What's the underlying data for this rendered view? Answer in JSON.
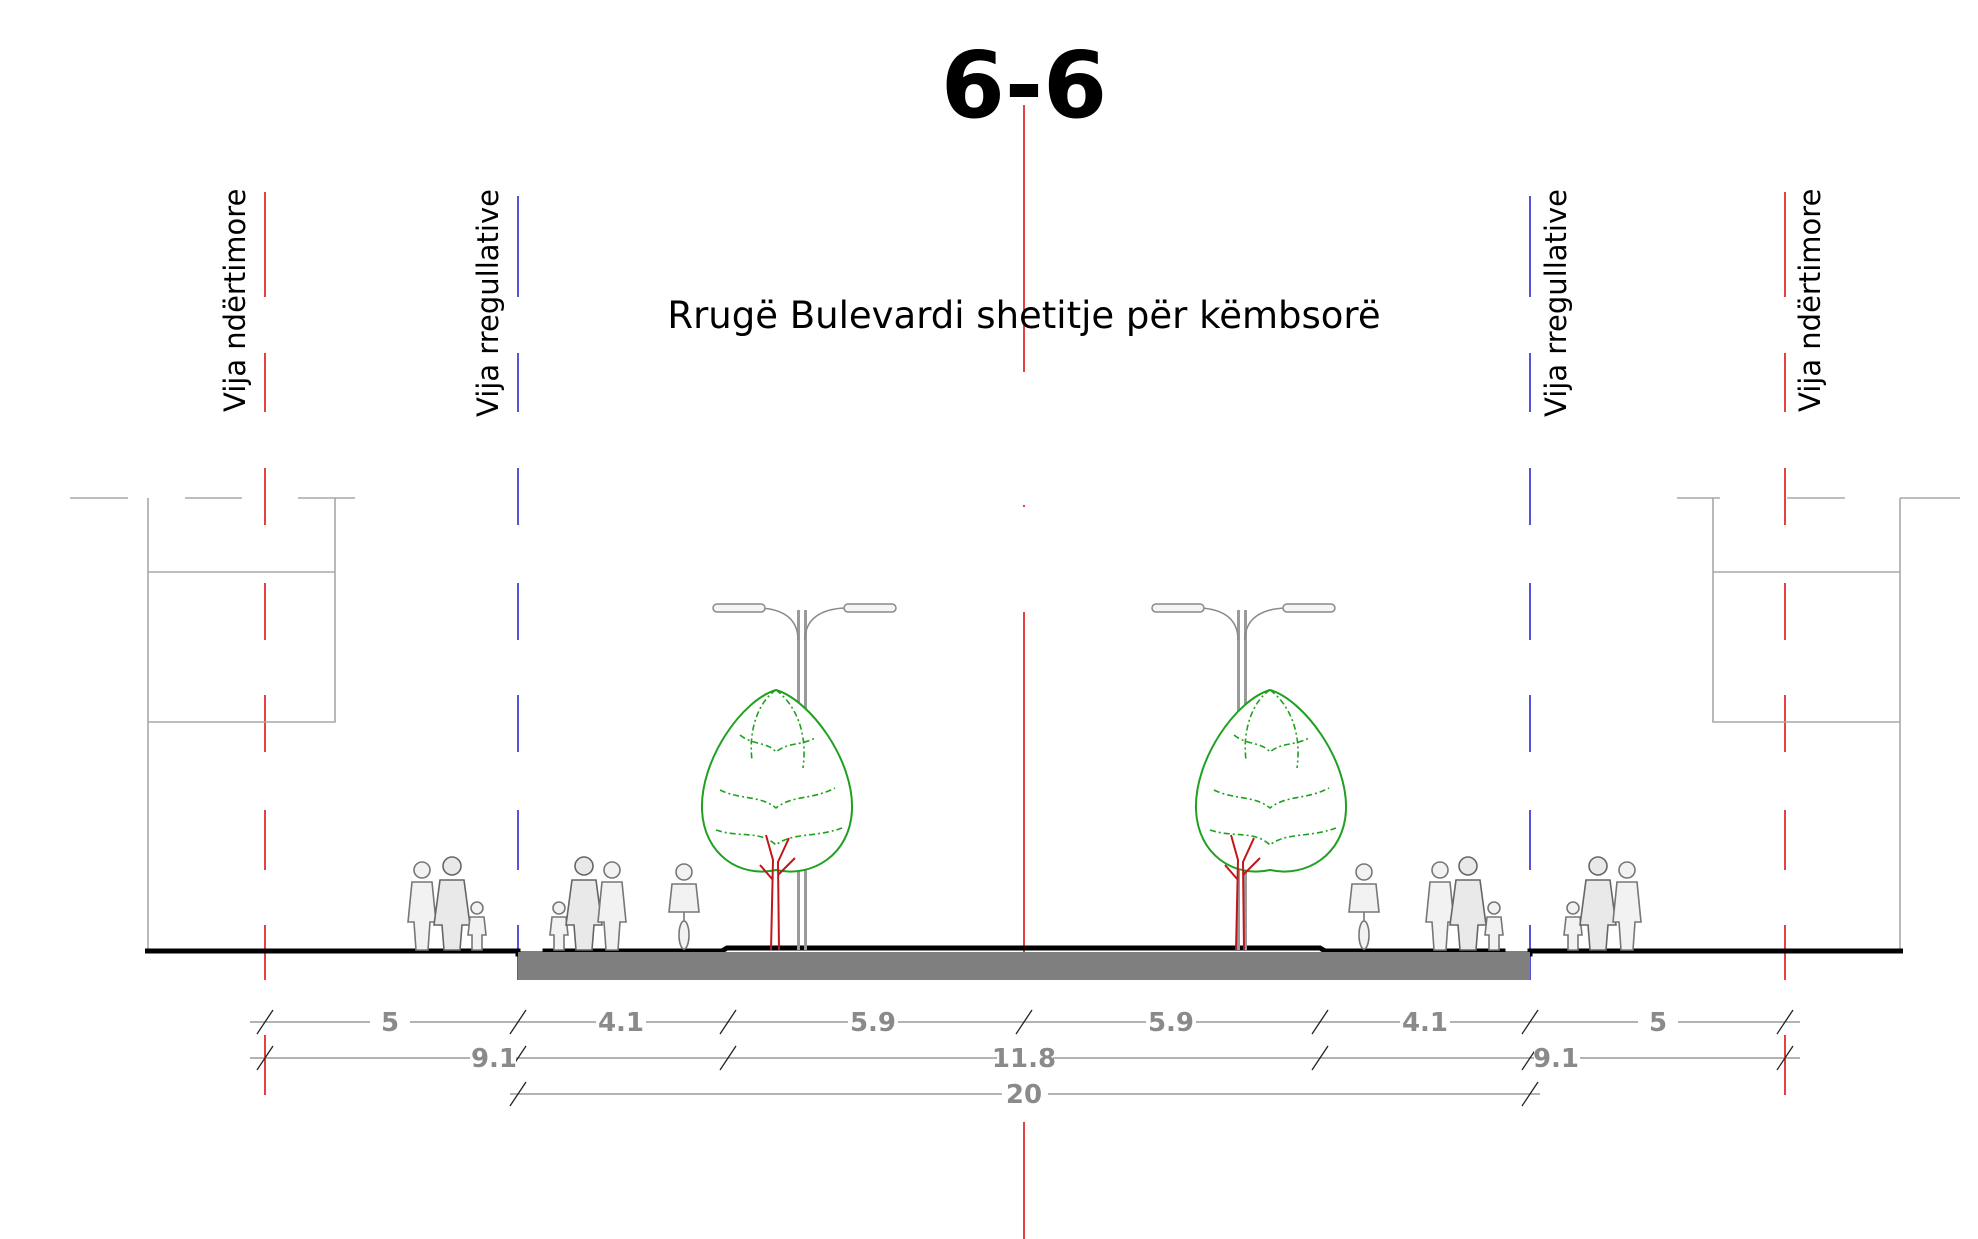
{
  "title": "6-6",
  "subtitle": "Rrugë Bulevardi shetitje për këmbsorë",
  "line_labels": {
    "building_left": "Vija ndërtimore",
    "regulation_left": "Vija rregullative",
    "regulation_right": "Vija rregullative",
    "building_right": "Vija ndërtimore"
  },
  "dimensions": {
    "row1": [
      "5",
      "4.1",
      "5.9",
      "5.9",
      "4.1",
      "5"
    ],
    "row2": [
      "9.1",
      "11.8",
      "9.1"
    ],
    "row3": [
      "20"
    ]
  },
  "colors": {
    "axis_red": "#e01010",
    "regulation_blue": "#2a2ad0",
    "tree_green": "#1fa01f",
    "trunk_red": "#c01818",
    "road_gray": "#7f7f7f",
    "dimension_gray": "#8a8a8a"
  }
}
